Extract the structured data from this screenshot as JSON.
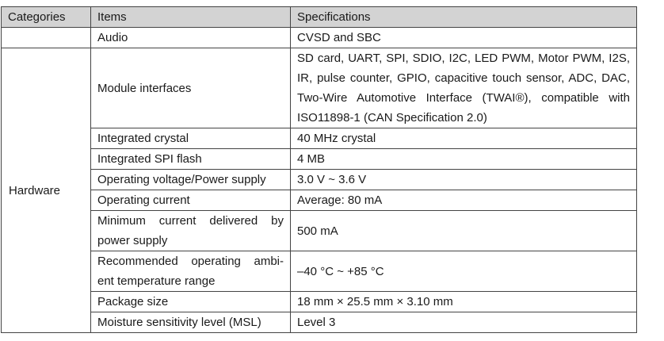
{
  "headers": {
    "categories": "Categories",
    "items": "Items",
    "specifications": "Specifications"
  },
  "rows": [
    {
      "category": "",
      "item": "Audio",
      "spec": "CVSD and SBC"
    },
    {
      "category": "Hardware",
      "item": "Module interfaces",
      "spec": "SD card, UART, SPI, SDIO, I2C, LED PWM, Motor PWM, I2S, IR, pulse counter, GPIO, capacitive touch sensor, ADC, DAC, Two-Wire Automotive Interface (TWAI®), compatible with ISO11898-1 (CAN Specification 2.0)"
    },
    {
      "category": "Hardware",
      "item": "Integrated crystal",
      "spec": "40 MHz crystal"
    },
    {
      "category": "Hardware",
      "item": "Integrated SPI flash",
      "spec": "4 MB"
    },
    {
      "category": "Hardware",
      "item": "Operating voltage/Power supply",
      "spec": "3.0 V ~ 3.6 V"
    },
    {
      "category": "Hardware",
      "item": "Operating current",
      "spec": "Average: 80 mA"
    },
    {
      "category": "Hardware",
      "item": "Minimum current delivered by power supply",
      "spec": "500 mA"
    },
    {
      "category": "Hardware",
      "item": "Recommended operating ambi- ent temperature range",
      "spec": "–40 °C ~ +85 °C"
    },
    {
      "category": "Hardware",
      "item": "Package size",
      "spec": "18 mm × 25.5 mm × 3.10 mm"
    },
    {
      "category": "Hardware",
      "item": "Moisture sensitivity level (MSL)",
      "spec": "Level 3"
    }
  ]
}
